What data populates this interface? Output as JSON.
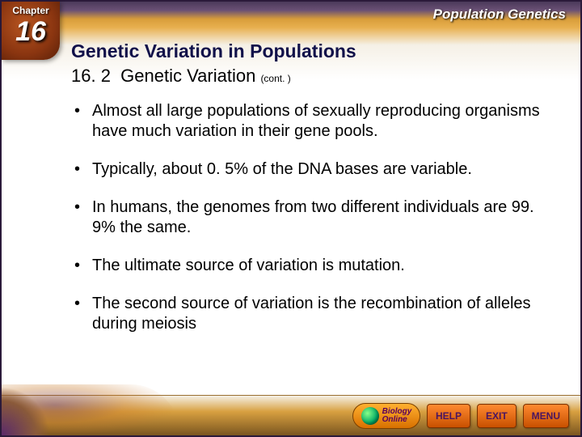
{
  "chapter": {
    "label": "Chapter",
    "number": "16"
  },
  "topic": "Population Genetics",
  "title": "Genetic Variation in Populations",
  "section_number": "16. 2",
  "section_title": "Genetic Variation",
  "cont_label": "(cont. )",
  "bullets": [
    "Almost all large populations of sexually reproducing organisms have much variation in their gene pools.",
    "Typically, about 0. 5% of the DNA bases are variable.",
    "In humans, the genomes from two different individuals are 99. 9% the same.",
    "The ultimate source of variation is mutation.",
    "The second source of variation is the recombination of alleles during meiosis"
  ],
  "footer": {
    "online_brand_top": "Biology",
    "online_brand_bottom": "Online",
    "help": "HELP",
    "exit": "EXIT",
    "menu": "MENU"
  },
  "colors": {
    "title_color": "#11114a",
    "accent_orange": "#d87000",
    "accent_purple": "#4a1560"
  }
}
